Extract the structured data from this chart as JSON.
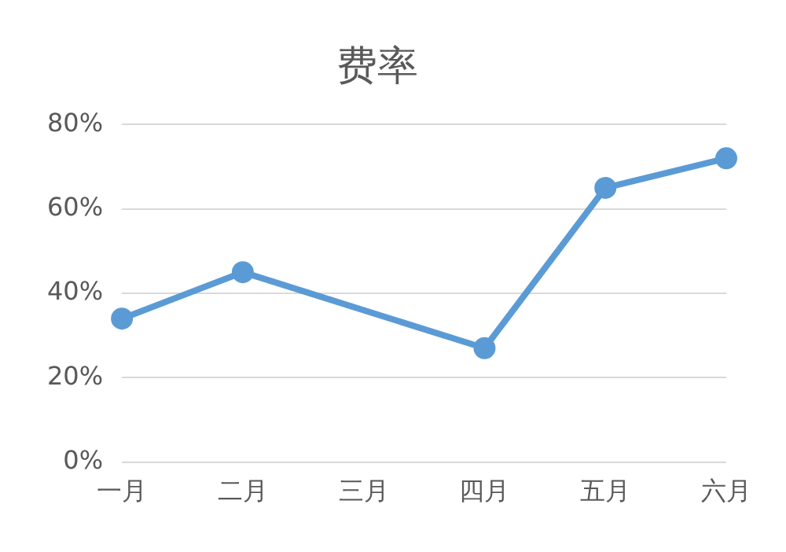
{
  "chart_data": {
    "type": "line",
    "title": "费率",
    "categories": [
      "一月",
      "二月",
      "三月",
      "四月",
      "五月",
      "六月"
    ],
    "series": [
      {
        "color": "#5b9bd5",
        "values": [
          34,
          45,
          null,
          27,
          65,
          72
        ]
      }
    ],
    "ylim": [
      0,
      80
    ],
    "yticks": [
      {
        "value": 0,
        "label": "0%"
      },
      {
        "value": 20,
        "label": "20%"
      },
      {
        "value": 40,
        "label": "40%"
      },
      {
        "value": 60,
        "label": "60%"
      },
      {
        "value": 80,
        "label": "80%"
      }
    ],
    "grid": "y",
    "legend": false,
    "marker": "circle",
    "line_style": "solid"
  }
}
